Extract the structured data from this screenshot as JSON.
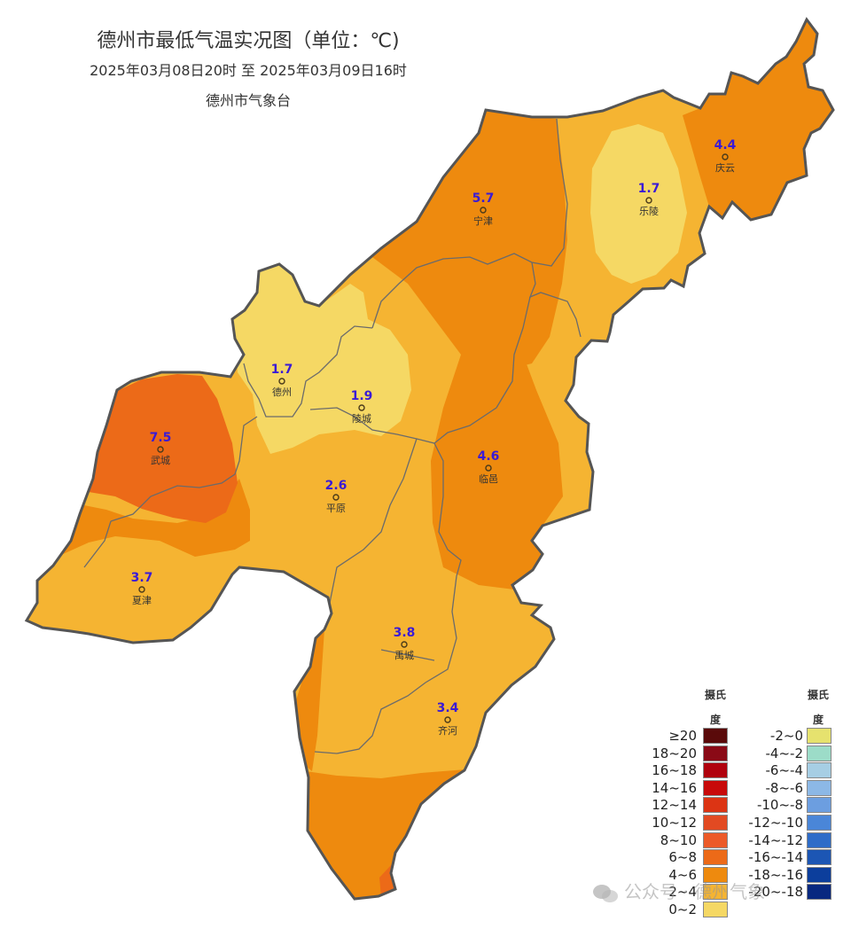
{
  "header": {
    "title": "德州市最低气温实况图（单位：℃)",
    "time_range": "2025年03月08日20时  至  2025年03月09日16时",
    "organization": "德州市气象台"
  },
  "stations": [
    {
      "name": "庆云",
      "value": "4.4"
    },
    {
      "name": "宁津",
      "value": "5.7"
    },
    {
      "name": "乐陵",
      "value": "1.7"
    },
    {
      "name": "德州",
      "value": "1.7"
    },
    {
      "name": "陵城",
      "value": "1.9"
    },
    {
      "name": "武城",
      "value": "7.5"
    },
    {
      "name": "平原",
      "value": "2.6"
    },
    {
      "name": "临邑",
      "value": "4.6"
    },
    {
      "name": "夏津",
      "value": "3.7"
    },
    {
      "name": "禹城",
      "value": "3.8"
    },
    {
      "name": "齐河",
      "value": "3.4"
    }
  ],
  "legend": {
    "unit_heading_left": [
      "摄氏",
      "度"
    ],
    "unit_heading_right": [
      "摄氏",
      "度"
    ],
    "warm": [
      {
        "label": "≥20",
        "color": "#5a0a0a"
      },
      {
        "label": "18~20",
        "color": "#8a0a16"
      },
      {
        "label": "16~18",
        "color": "#b0020e"
      },
      {
        "label": "14~16",
        "color": "#c80a0a"
      },
      {
        "label": "12~14",
        "color": "#dc3414"
      },
      {
        "label": "10~12",
        "color": "#e24a22"
      },
      {
        "label": "8~10",
        "color": "#ec5a28"
      },
      {
        "label": "6~8",
        "color": "#ec6a18"
      },
      {
        "label": "4~6",
        "color": "#ee8a0e"
      },
      {
        "label": "2~4",
        "color": "#f5b432"
      },
      {
        "label": "0~2",
        "color": "#f5d864"
      }
    ],
    "cold": [
      {
        "label": "-2~0",
        "color": "#e6e26e"
      },
      {
        "label": "-4~-2",
        "color": "#9cdcc8"
      },
      {
        "label": "-6~-4",
        "color": "#a6cee4"
      },
      {
        "label": "-8~-6",
        "color": "#8cb8e6"
      },
      {
        "label": "-10~-8",
        "color": "#6c9ee0"
      },
      {
        "label": "-12~-10",
        "color": "#4a86d8"
      },
      {
        "label": "-14~-12",
        "color": "#2e6cc8"
      },
      {
        "label": "-16~-14",
        "color": "#1c56b4"
      },
      {
        "label": "-18~-16",
        "color": "#0c3e9c"
      },
      {
        "label": "-20~-18",
        "color": "#082880"
      }
    ]
  },
  "watermark": "公众号 · 德州气象",
  "colors": {
    "border": "#555555",
    "station_value": "#3a1ad6",
    "station_name": "#333333"
  }
}
